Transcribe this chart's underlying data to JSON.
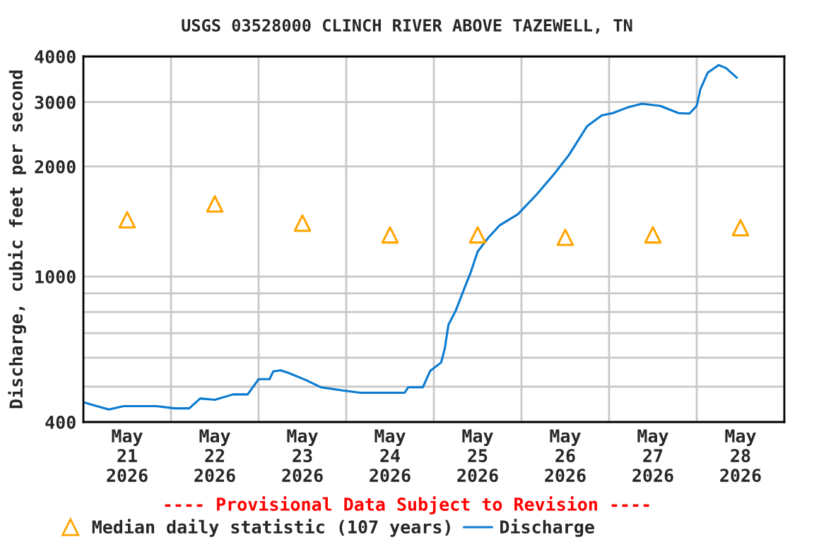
{
  "chart_data": {
    "type": "line",
    "title": "USGS 03528000 CLINCH RIVER ABOVE TAZEWELL, TN",
    "ylabel": "Discharge, cubic feet per second",
    "annotations": [
      "---- Provisional Data Subject to Revision ----"
    ],
    "series": [
      {
        "name": "Median daily statistic (107 years)",
        "type": "scatter",
        "marker": "triangle",
        "color": "#ffa500",
        "x": [
          "2026-05-21T12:00",
          "2026-05-22T12:00",
          "2026-05-23T12:00",
          "2026-05-24T12:00",
          "2026-05-25T12:00",
          "2026-05-26T12:00",
          "2026-05-27T12:00",
          "2026-05-28T12:00"
        ],
        "values": [
          1430,
          1580,
          1400,
          1300,
          1300,
          1280,
          1300,
          1360
        ]
      },
      {
        "name": "Discharge",
        "marker": "none",
        "color": "#0a7ad0",
        "x": [
          "2026-05-21T00:00",
          "2026-05-21T03:00",
          "2026-05-21T07:00",
          "2026-05-21T11:00",
          "2026-05-21T20:00",
          "2026-05-22T01:00",
          "2026-05-22T05:00",
          "2026-05-22T08:00",
          "2026-05-22T12:00",
          "2026-05-22T17:00",
          "2026-05-22T21:00",
          "2026-05-23T00:00",
          "2026-05-23T03:00",
          "2026-05-23T04:00",
          "2026-05-23T06:00",
          "2026-05-23T08:00",
          "2026-05-23T13:00",
          "2026-05-23T17:00",
          "2026-05-23T23:00",
          "2026-05-24T04:00",
          "2026-05-24T16:00",
          "2026-05-24T17:00",
          "2026-05-24T21:00",
          "2026-05-24T23:00",
          "2026-05-25T02:00",
          "2026-05-25T03:00",
          "2026-05-25T04:00",
          "2026-05-25T06:00",
          "2026-05-25T09:00",
          "2026-05-25T10:00",
          "2026-05-25T12:00",
          "2026-05-25T15:00",
          "2026-05-25T18:00",
          "2026-05-25T23:00",
          "2026-05-26T04:00",
          "2026-05-26T09:00",
          "2026-05-26T13:00",
          "2026-05-26T18:00",
          "2026-05-26T22:00",
          "2026-05-27T01:00",
          "2026-05-27T05:00",
          "2026-05-27T09:00",
          "2026-05-27T14:00",
          "2026-05-27T19:00",
          "2026-05-27T22:00",
          "2026-05-28T00:00",
          "2026-05-28T01:00",
          "2026-05-28T03:00",
          "2026-05-28T06:00",
          "2026-05-28T08:00",
          "2026-05-28T11:00"
        ],
        "values": [
          453,
          444,
          433,
          442,
          442,
          436,
          436,
          464,
          460,
          476,
          476,
          524,
          524,
          550,
          554,
          546,
          521,
          498,
          488,
          481,
          481,
          498,
          498,
          552,
          582,
          636,
          738,
          807,
          964,
          1020,
          1170,
          1280,
          1380,
          1480,
          1670,
          1910,
          2150,
          2580,
          2760,
          2800,
          2900,
          2970,
          2930,
          2800,
          2790,
          2930,
          3250,
          3610,
          3790,
          3720,
          3500
        ]
      }
    ],
    "log": "y",
    "xlim": [
      "2026-05-21",
      "2026-05-29"
    ],
    "xticks": [
      {
        "value": "2026-05-21T12:00",
        "label": "May\n21\n2026"
      },
      {
        "value": "2026-05-22T12:00",
        "label": "May\n22\n2026"
      },
      {
        "value": "2026-05-23T12:00",
        "label": "May\n23\n2026"
      },
      {
        "value": "2026-05-24T12:00",
        "label": "May\n24\n2026"
      },
      {
        "value": "2026-05-25T12:00",
        "label": "May\n25\n2026"
      },
      {
        "value": "2026-05-26T12:00",
        "label": "May\n26\n2026"
      },
      {
        "value": "2026-05-27T12:00",
        "label": "May\n27\n2026"
      },
      {
        "value": "2026-05-28T12:00",
        "label": "May\n28\n2026"
      },
      {
        "value": "2026-05-22",
        "label": null
      },
      {
        "value": "2026-05-23",
        "label": null
      },
      {
        "value": "2026-05-24",
        "label": null
      },
      {
        "value": "2026-05-25",
        "label": null
      },
      {
        "value": "2026-05-26",
        "label": null
      },
      {
        "value": "2026-05-27",
        "label": null
      },
      {
        "value": "2026-05-28",
        "label": null
      }
    ],
    "ylim": [
      400,
      4000
    ],
    "yticks": [
      400,
      {
        "value": 500,
        "label": null
      },
      {
        "value": 600,
        "label": null
      },
      {
        "value": 700,
        "label": null
      },
      {
        "value": 800,
        "label": null
      },
      {
        "value": 900,
        "label": null
      },
      1000,
      2000,
      3000,
      4000
    ],
    "grid": true,
    "legend": "bottom"
  }
}
